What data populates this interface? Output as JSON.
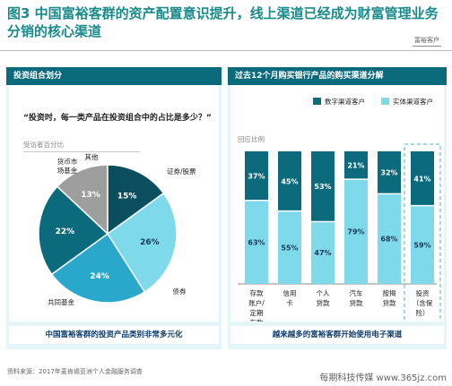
{
  "title": {
    "fig": "图3",
    "text": "中国富裕客群的资产配置意识提升，线上渠道已经成为财富管理业务分销的核心渠道"
  },
  "logo": "富裕客户",
  "left_panel": {
    "header": "投资组合划分",
    "question": "“投资时，每一类产品在投资组合中的占比是多少？”",
    "respondent": "受访者百分比",
    "footer": "中国富裕客群的投资产品类别非常多元化"
  },
  "right_panel": {
    "header": "过去12个月购买银行产品的购买渠道分解",
    "unit": "回应比例",
    "footer": "越来越多的富裕客群开始使用电子渠道"
  },
  "source": "资料来源：2017年麦肯锡亚洲个人金融服务调查",
  "watermark": "每期科技传媒 www.365jz.com",
  "colors": {
    "accent": "#0b6a7c",
    "panel_bg": "#e4f6f8",
    "dark": "#0b6a7c",
    "light": "#7ed9ea",
    "gray": "#9e9e9e"
  },
  "chart_data": [
    {
      "type": "pie",
      "categories": [
        "证券/股票",
        "债券",
        "共同基金",
        "货币市场基金",
        "其他"
      ],
      "display_labels": [
        "证券/股票",
        "债券",
        "共同基金",
        "货币市\n场基金",
        "其他"
      ],
      "values": [
        26,
        24,
        22,
        13,
        15
      ],
      "value_labels": [
        "26%",
        "24%",
        "22%",
        "13%",
        "15%"
      ],
      "colors": [
        "#7ed9ea",
        "#29a8cc",
        "#0b6a7c",
        "#9e9e9e",
        "#0b4f5e"
      ]
    },
    {
      "type": "bar",
      "stacked": true,
      "categories": [
        "存款账户/定期存款",
        "信用卡",
        "个人贷款",
        "汽车贷款",
        "按揭贷款",
        "投资（含保险）"
      ],
      "display_labels": [
        [
          "存款",
          "账户/",
          "定期",
          "存款"
        ],
        [
          "信用",
          "卡"
        ],
        [
          "个人",
          "贷款"
        ],
        [
          "汽车",
          "贷款"
        ],
        [
          "按揭",
          "贷款"
        ],
        [
          "投资",
          "（含保",
          "险）"
        ]
      ],
      "series": [
        {
          "name": "数字渠道客户",
          "values": [
            37,
            45,
            53,
            21,
            32,
            41
          ],
          "labels": [
            "37%",
            "45%",
            "53%",
            "21%",
            "32%",
            "41%"
          ]
        },
        {
          "name": "实体渠道客户",
          "values": [
            63,
            55,
            47,
            79,
            68,
            59
          ],
          "labels": [
            "63%",
            "55%",
            "47%",
            "79%",
            "68%",
            "59%"
          ]
        }
      ],
      "ylim": [
        0,
        100
      ],
      "legend": "top",
      "highlight_category": "投资（含保险）"
    }
  ]
}
